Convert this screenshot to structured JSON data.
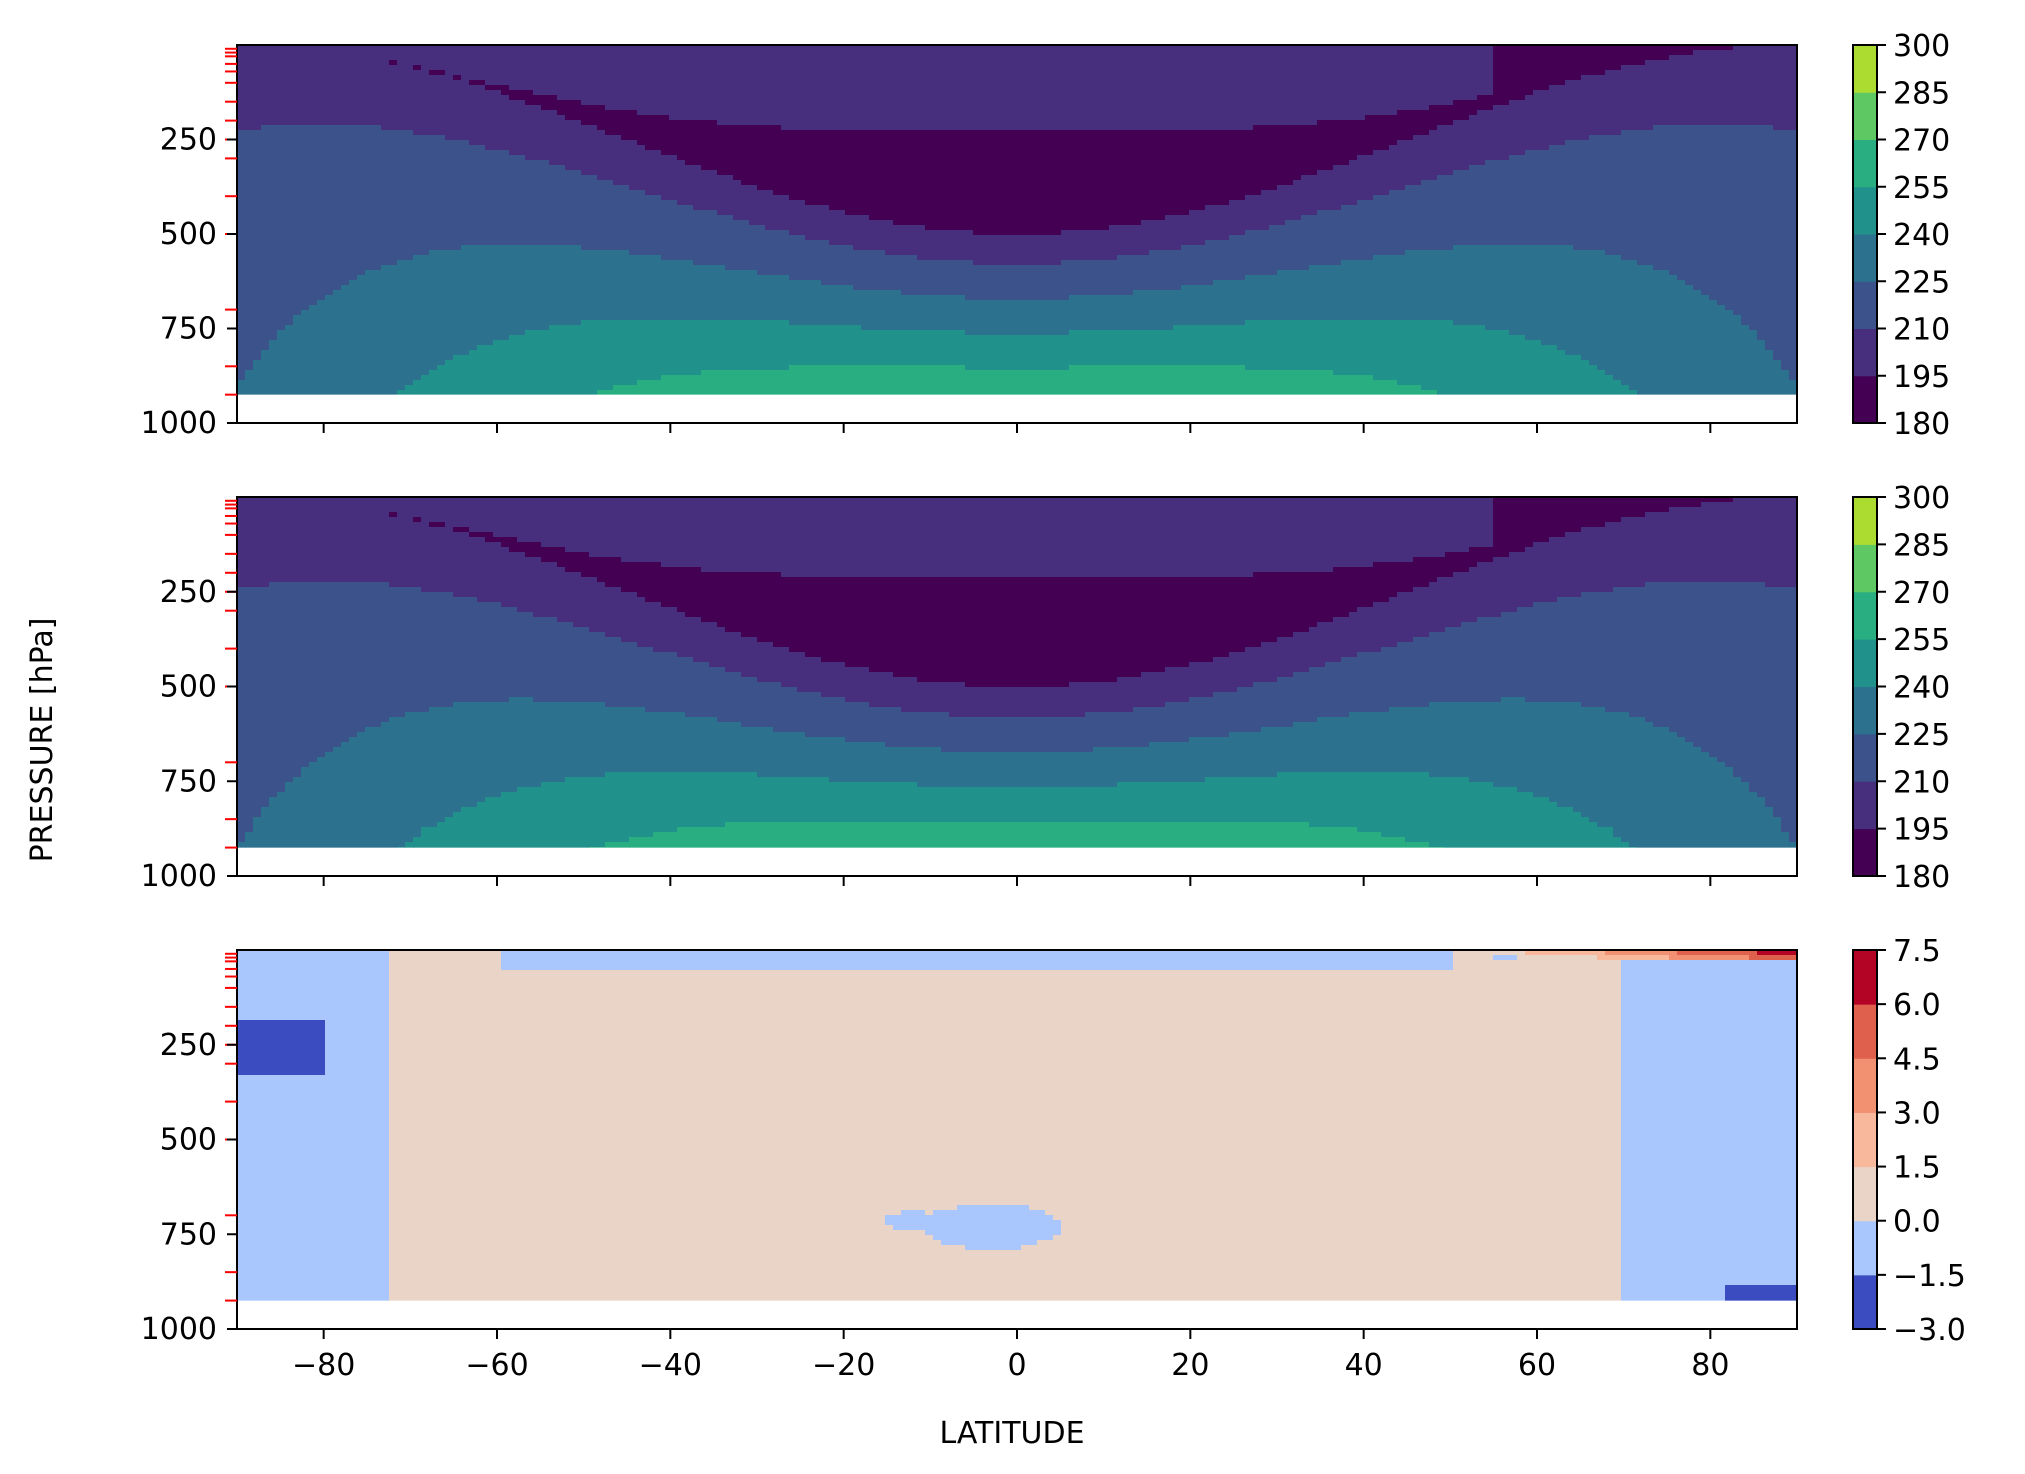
{
  "figure": {
    "ylabel": "PRESSURE [hPa]",
    "xlabel": "LATITUDE"
  },
  "chart_data": [
    {
      "type": "contour",
      "panel": "top",
      "colormap": "viridis",
      "xlim": [
        -90,
        90
      ],
      "ylim": [
        1000,
        0
      ],
      "xticks": [
        -80,
        -60,
        -40,
        -20,
        0,
        20,
        40,
        60,
        80
      ],
      "yticks": [
        250,
        500,
        750,
        1000
      ],
      "ytick_labels": [
        "250",
        "500",
        "750",
        "1000"
      ],
      "levels": [
        180,
        195,
        210,
        225,
        240,
        255,
        270,
        285,
        300
      ],
      "colorbar_ticks": [
        "300",
        "285",
        "270",
        "255",
        "240",
        "225",
        "210",
        "195",
        "180"
      ],
      "data_bottom_pressure": 925,
      "pressure_levels_marked": [
        10,
        20,
        30,
        50,
        70,
        100,
        150,
        200,
        250,
        300,
        400,
        500,
        700,
        850,
        925
      ],
      "xticklabels_visible": false
    },
    {
      "type": "contour",
      "panel": "middle",
      "colormap": "viridis",
      "xlim": [
        -90,
        90
      ],
      "ylim": [
        1000,
        0
      ],
      "xticks": [
        -80,
        -60,
        -40,
        -20,
        0,
        20,
        40,
        60,
        80
      ],
      "yticks": [
        250,
        500,
        750,
        1000
      ],
      "ytick_labels": [
        "250",
        "500",
        "750",
        "1000"
      ],
      "levels": [
        180,
        195,
        210,
        225,
        240,
        255,
        270,
        285,
        300
      ],
      "colorbar_ticks": [
        "300",
        "285",
        "270",
        "255",
        "240",
        "225",
        "210",
        "195",
        "180"
      ],
      "data_bottom_pressure": 925,
      "pressure_levels_marked": [
        10,
        20,
        30,
        50,
        70,
        100,
        150,
        200,
        250,
        300,
        400,
        500,
        700,
        850,
        925
      ],
      "xticklabels_visible": false
    },
    {
      "type": "contour",
      "panel": "bottom",
      "colormap": "coolwarm",
      "xlim": [
        -90,
        90
      ],
      "ylim": [
        1000,
        0
      ],
      "xticks": [
        -80,
        -60,
        -40,
        -20,
        0,
        20,
        40,
        60,
        80
      ],
      "xtick_labels": [
        "−80",
        "−60",
        "−40",
        "−20",
        "0",
        "20",
        "40",
        "60",
        "80"
      ],
      "yticks": [
        250,
        500,
        750,
        1000
      ],
      "ytick_labels": [
        "250",
        "500",
        "750",
        "1000"
      ],
      "levels": [
        -3.0,
        -1.5,
        0.0,
        1.5,
        3.0,
        4.5,
        6.0,
        7.5
      ],
      "colorbar_ticks": [
        "7.5",
        "6.0",
        "4.5",
        "3.0",
        "1.5",
        "0.0",
        "−1.5",
        "−3.0"
      ],
      "data_bottom_pressure": 925,
      "pressure_levels_marked": [
        10,
        20,
        30,
        50,
        70,
        100,
        150,
        200,
        250,
        300,
        400,
        500,
        700,
        850,
        925
      ],
      "xticklabels_visible": true
    }
  ],
  "colors": {
    "viridis": [
      "#440154",
      "#472f7d",
      "#3b528b",
      "#2c728e",
      "#21918c",
      "#28ae80",
      "#5ec962",
      "#addc30",
      "#fde725"
    ],
    "coolwarm": [
      "#3b4cc0",
      "#aac7fd",
      "#ead4c8",
      "#f7b89c",
      "#f29072",
      "#de604d",
      "#b40426"
    ],
    "marker": "#ff0000"
  }
}
